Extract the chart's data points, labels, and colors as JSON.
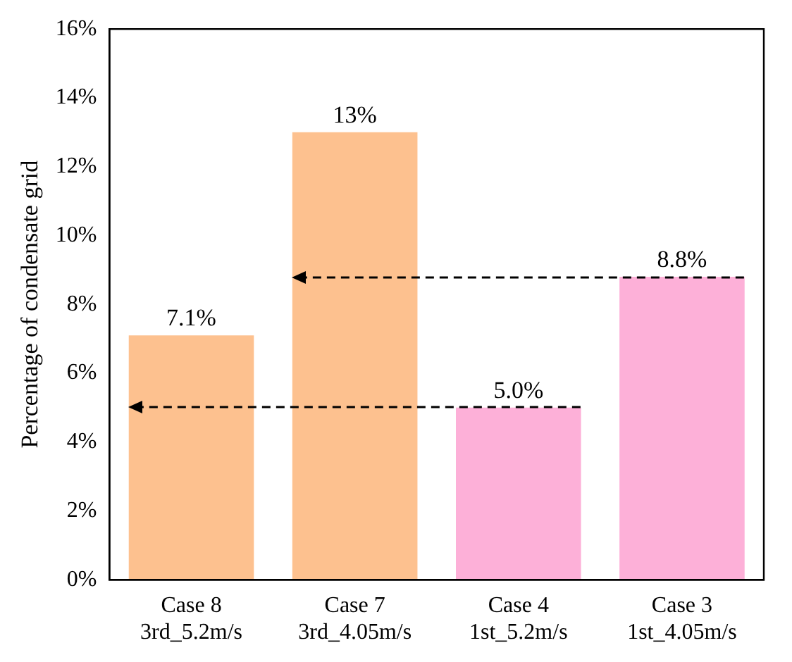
{
  "chart_data": {
    "type": "bar",
    "ylabel": "Percentage of condensate grid",
    "categories": [
      "Case 8\n3rd_5.2m/s",
      "Case 7\n3rd_4.05m/s",
      "Case 4\n1st_5.2m/s",
      "Case 3\n1st_4.05m/s"
    ],
    "values": [
      7.1,
      13,
      5.0,
      8.8
    ],
    "value_labels": [
      "7.1%",
      "13%",
      "5.0%",
      "8.8%"
    ],
    "colors": [
      "#fdc18f",
      "#fdc18f",
      "#fdb0d8",
      "#fdb0d8"
    ],
    "ylim": [
      0,
      16
    ],
    "yticks": [
      {
        "value": 0,
        "label": "0%"
      },
      {
        "value": 2,
        "label": "2%"
      },
      {
        "value": 4,
        "label": "4%"
      },
      {
        "value": 6,
        "label": "6%"
      },
      {
        "value": 8,
        "label": "8%"
      },
      {
        "value": 10,
        "label": "10%"
      },
      {
        "value": 12,
        "label": "12%"
      },
      {
        "value": 14,
        "label": "14%"
      },
      {
        "value": 16,
        "label": "16%"
      }
    ],
    "grid": false,
    "legend": false
  }
}
